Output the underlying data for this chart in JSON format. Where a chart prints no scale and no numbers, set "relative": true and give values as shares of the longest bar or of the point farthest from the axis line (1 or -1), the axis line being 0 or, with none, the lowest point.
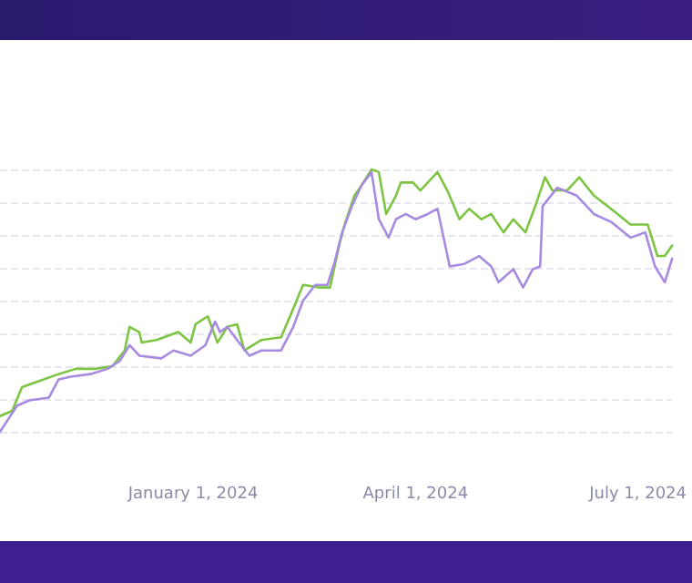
{
  "chart_data": {
    "type": "line",
    "relative": true,
    "grid": "y",
    "marker": "none",
    "tick_labels": "x",
    "xlim": [
      "2023-10-14",
      "2024-07-15"
    ],
    "xticks": [
      {
        "value": "2024-01-01",
        "label": "January 1, 2024"
      },
      {
        "value": "2024-04-01",
        "label": "April 1, 2024"
      },
      {
        "value": "2024-07-01",
        "label": "July 1, 2024"
      }
    ],
    "series": [
      {
        "color": "#7dc443",
        "x": [
          "2023-10-14",
          "2023-10-19",
          "2023-10-23",
          "2023-10-29",
          "2023-11-07",
          "2023-11-14",
          "2023-11-22",
          "2023-11-29",
          "2023-12-04",
          "2023-12-06",
          "2023-12-10",
          "2023-12-11",
          "2023-12-17",
          "2023-12-26",
          "2023-12-31",
          "2024-01-02",
          "2024-01-07",
          "2024-01-11",
          "2024-01-15",
          "2024-01-19",
          "2024-01-22",
          "2024-01-29",
          "2024-02-06",
          "2024-02-11",
          "2024-02-15",
          "2024-02-22",
          "2024-02-26",
          "2024-03-01",
          "2024-03-03",
          "2024-03-07",
          "2024-03-10",
          "2024-03-14",
          "2024-03-17",
          "2024-03-20",
          "2024-03-24",
          "2024-03-26",
          "2024-03-31",
          "2024-04-03",
          "2024-04-10",
          "2024-04-14",
          "2024-04-19",
          "2024-04-23",
          "2024-04-28",
          "2024-05-02",
          "2024-05-07",
          "2024-05-11",
          "2024-05-16",
          "2024-05-20",
          "2024-05-24",
          "2024-05-27",
          "2024-06-02",
          "2024-06-07",
          "2024-06-13",
          "2024-06-20",
          "2024-06-28",
          "2024-07-05",
          "2024-07-09",
          "2024-07-12",
          "2024-07-15"
        ],
        "values": [
          0.06,
          0.08,
          0.17,
          0.19,
          0.22,
          0.24,
          0.24,
          0.25,
          0.31,
          0.4,
          0.38,
          0.34,
          0.35,
          0.38,
          0.34,
          0.41,
          0.44,
          0.34,
          0.4,
          0.41,
          0.31,
          0.35,
          0.36,
          0.47,
          0.56,
          0.55,
          0.55,
          0.72,
          0.79,
          0.9,
          0.94,
          1.0,
          0.99,
          0.83,
          0.9,
          0.95,
          0.95,
          0.92,
          0.99,
          0.92,
          0.81,
          0.85,
          0.81,
          0.83,
          0.76,
          0.81,
          0.76,
          0.86,
          0.97,
          0.92,
          0.92,
          0.97,
          0.9,
          0.85,
          0.79,
          0.79,
          0.67,
          0.67,
          0.71
        ]
      },
      {
        "color": "#a68be0",
        "x": [
          "2023-10-14",
          "2023-10-21",
          "2023-10-26",
          "2023-11-03",
          "2023-11-07",
          "2023-11-12",
          "2023-11-20",
          "2023-11-27",
          "2023-12-02",
          "2023-12-06",
          "2023-12-10",
          "2023-12-19",
          "2023-12-24",
          "2023-12-31",
          "2024-01-06",
          "2024-01-10",
          "2024-01-12",
          "2024-01-15",
          "2024-01-19",
          "2024-01-24",
          "2024-01-29",
          "2024-02-06",
          "2024-02-11",
          "2024-02-15",
          "2024-02-20",
          "2024-02-25",
          "2024-02-28",
          "2024-03-02",
          "2024-03-06",
          "2024-03-10",
          "2024-03-14",
          "2024-03-17",
          "2024-03-21",
          "2024-03-24",
          "2024-03-28",
          "2024-04-01",
          "2024-04-06",
          "2024-04-10",
          "2024-04-15",
          "2024-04-21",
          "2024-04-27",
          "2024-05-02",
          "2024-05-05",
          "2024-05-11",
          "2024-05-15",
          "2024-05-19",
          "2024-05-22",
          "2024-05-23",
          "2024-05-29",
          "2024-06-06",
          "2024-06-13",
          "2024-06-20",
          "2024-06-28",
          "2024-07-04",
          "2024-07-08",
          "2024-07-12",
          "2024-07-15"
        ],
        "values": [
          0,
          0.1,
          0.12,
          0.13,
          0.2,
          0.21,
          0.22,
          0.24,
          0.27,
          0.33,
          0.29,
          0.28,
          0.31,
          0.29,
          0.33,
          0.42,
          0.38,
          0.4,
          0.35,
          0.29,
          0.31,
          0.31,
          0.4,
          0.5,
          0.56,
          0.56,
          0.65,
          0.76,
          0.86,
          0.94,
          0.99,
          0.81,
          0.74,
          0.81,
          0.83,
          0.81,
          0.83,
          0.85,
          0.63,
          0.64,
          0.67,
          0.63,
          0.57,
          0.62,
          0.55,
          0.62,
          0.63,
          0.86,
          0.93,
          0.9,
          0.83,
          0.8,
          0.74,
          0.76,
          0.63,
          0.57,
          0.66
        ]
      }
    ]
  }
}
